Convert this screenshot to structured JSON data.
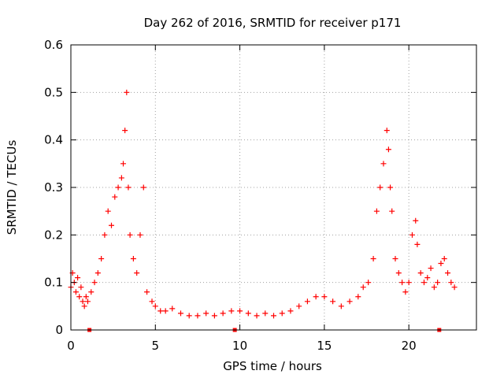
{
  "chart_data": {
    "type": "scatter",
    "title": "Day 262 of 2016, SRMTID for receiver p171",
    "xlabel": "GPS time / hours",
    "ylabel": "SRMTID / TECUs",
    "xlim": [
      0,
      24
    ],
    "ylim": [
      0,
      0.6
    ],
    "xticks": [
      0,
      5,
      10,
      15,
      20
    ],
    "xtick_labels": [
      "0",
      "5",
      "10",
      "15",
      "20"
    ],
    "yticks": [
      0,
      0.1,
      0.2,
      0.3,
      0.4,
      0.5,
      0.6
    ],
    "ytick_labels": [
      "0",
      "0.1",
      "0.2",
      "0.3",
      "0.4",
      "0.5",
      "0.6"
    ],
    "grid": true,
    "marker": "+",
    "series_color": "#ff0000",
    "gap_markers": [
      1.1,
      9.7,
      21.8
    ],
    "series": [
      {
        "name": "SRMTID",
        "x": [
          0.0,
          0.1,
          0.2,
          0.3,
          0.4,
          0.5,
          0.6,
          0.7,
          0.8,
          0.9,
          1.0,
          1.2,
          1.4,
          1.6,
          1.8,
          2.0,
          2.2,
          2.4,
          2.6,
          2.8,
          3.0,
          3.1,
          3.2,
          3.3,
          3.4,
          3.5,
          3.7,
          3.9,
          4.1,
          4.3,
          4.5,
          4.8,
          5.0,
          5.3,
          5.6,
          6.0,
          6.5,
          7.0,
          7.5,
          8.0,
          8.5,
          9.0,
          9.5,
          10.0,
          10.5,
          11.0,
          11.5,
          12.0,
          12.5,
          13.0,
          13.5,
          14.0,
          14.5,
          15.0,
          15.5,
          16.0,
          16.5,
          17.0,
          17.3,
          17.6,
          17.9,
          18.1,
          18.3,
          18.5,
          18.7,
          18.8,
          18.9,
          19.0,
          19.2,
          19.4,
          19.6,
          19.8,
          20.0,
          20.2,
          20.4,
          20.5,
          20.7,
          20.9,
          21.1,
          21.3,
          21.5,
          21.7,
          21.9,
          22.1,
          22.3,
          22.5,
          22.7
        ],
        "y": [
          0.09,
          0.12,
          0.1,
          0.08,
          0.11,
          0.07,
          0.09,
          0.06,
          0.05,
          0.07,
          0.06,
          0.08,
          0.1,
          0.12,
          0.15,
          0.2,
          0.25,
          0.22,
          0.28,
          0.3,
          0.32,
          0.35,
          0.42,
          0.5,
          0.3,
          0.2,
          0.15,
          0.12,
          0.2,
          0.3,
          0.08,
          0.06,
          0.05,
          0.04,
          0.04,
          0.045,
          0.035,
          0.03,
          0.03,
          0.035,
          0.03,
          0.035,
          0.04,
          0.04,
          0.035,
          0.03,
          0.035,
          0.03,
          0.035,
          0.04,
          0.05,
          0.06,
          0.07,
          0.07,
          0.06,
          0.05,
          0.06,
          0.07,
          0.09,
          0.1,
          0.15,
          0.25,
          0.3,
          0.35,
          0.42,
          0.38,
          0.3,
          0.25,
          0.15,
          0.12,
          0.1,
          0.08,
          0.1,
          0.2,
          0.23,
          0.18,
          0.12,
          0.1,
          0.11,
          0.13,
          0.09,
          0.1,
          0.14,
          0.15,
          0.12,
          0.1,
          0.09
        ]
      }
    ]
  }
}
